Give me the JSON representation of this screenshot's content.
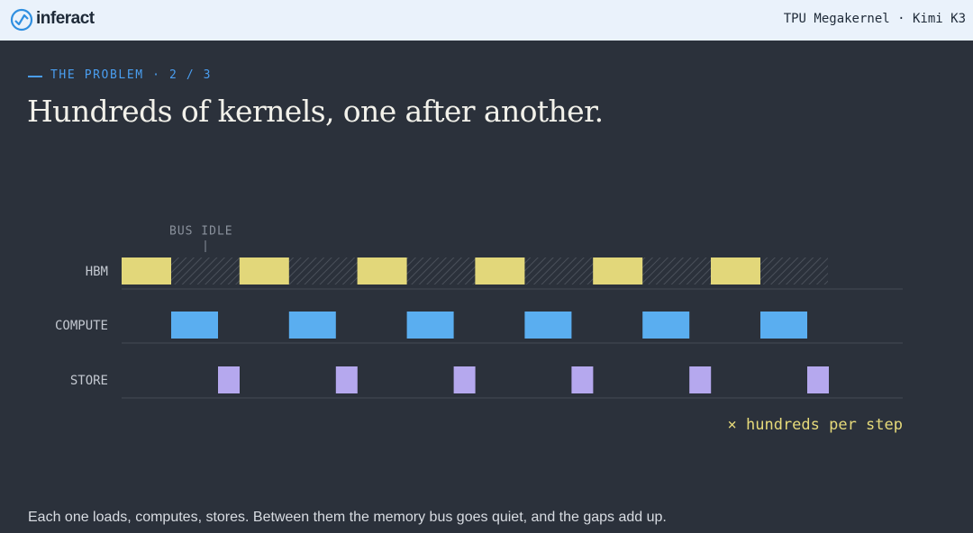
{
  "header": {
    "brand": "inferact",
    "context": "TPU Megakernel · Kimi K3"
  },
  "eyebrow": "THE PROBLEM · 2 / 3",
  "title": "Hundreds of kernels, one after another.",
  "diagram": {
    "annotation": "BUS IDLE",
    "rows": [
      "HBM",
      "COMPUTE",
      "STORE"
    ],
    "note": "× hundreds per step"
  },
  "caption": "Each one loads, computes, stores. Between them the memory bus goes quiet, and the gaps add up."
}
